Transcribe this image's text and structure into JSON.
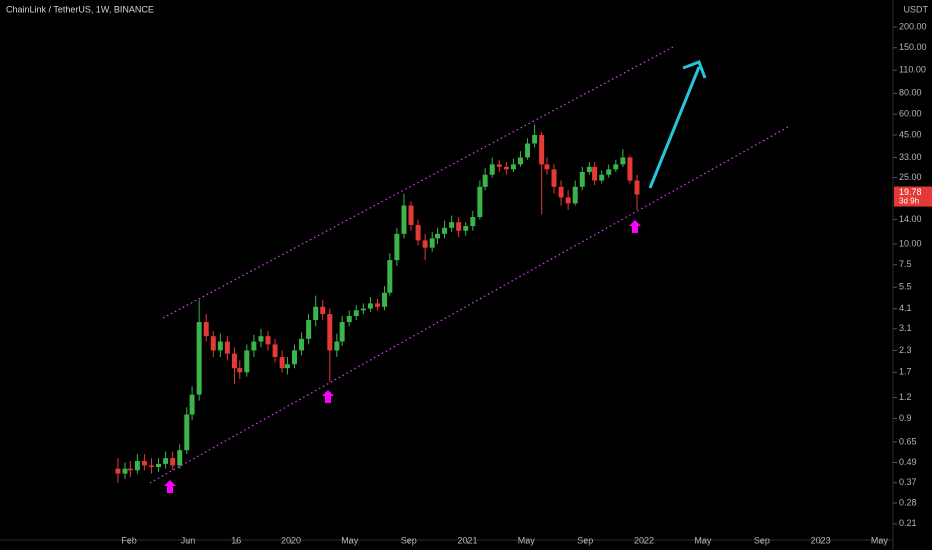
{
  "chart_data": {
    "type": "candlestick",
    "title": "ChainLink / TetherUS, 1W, BINANCE",
    "y_unit": "USDT",
    "last_price": 19.78,
    "countdown": "3d 9h",
    "log_scale": true,
    "up_color": "#3bb54a",
    "down_color": "#e53935",
    "xlim": [
      2018.352,
      2023.41
    ],
    "ylim": [
      0.18,
      290
    ],
    "xticks": [
      {
        "value": 2019.083,
        "label": "Feb"
      },
      {
        "value": 2019.417,
        "label": "Jun"
      },
      {
        "value": 2019.69,
        "label": "16"
      },
      2020,
      {
        "value": 2020.333,
        "label": "May"
      },
      {
        "value": 2020.667,
        "label": "Sep"
      },
      2021,
      {
        "value": 2021.333,
        "label": "May"
      },
      {
        "value": 2021.667,
        "label": "Sep"
      },
      2022,
      {
        "value": 2022.333,
        "label": "May"
      },
      {
        "value": 2022.667,
        "label": "Sep"
      },
      2023,
      {
        "value": 2023.333,
        "label": "May"
      }
    ],
    "yticks": [
      {
        "value": 200,
        "label": "200.00"
      },
      {
        "value": 150,
        "label": "150.00"
      },
      {
        "value": 110,
        "label": "110.00"
      },
      {
        "value": 80,
        "label": "80.00"
      },
      {
        "value": 60,
        "label": "60.00"
      },
      {
        "value": 45,
        "label": "45.00"
      },
      {
        "value": 33,
        "label": "33.00"
      },
      {
        "value": 25,
        "label": "25.00"
      },
      {
        "value": 14,
        "label": "14.00"
      },
      {
        "value": 10,
        "label": "10.00"
      },
      7.5,
      5.5,
      4.1,
      3.1,
      2.3,
      1.7,
      1.2,
      0.9,
      0.65,
      0.49,
      0.37,
      0.28,
      0.21
    ],
    "x": [
      2019.02,
      2019.06,
      2019.09,
      2019.13,
      2019.17,
      2019.21,
      2019.25,
      2019.29,
      2019.33,
      2019.37,
      2019.41,
      2019.44,
      2019.48,
      2019.52,
      2019.56,
      2019.6,
      2019.64,
      2019.68,
      2019.71,
      2019.75,
      2019.79,
      2019.83,
      2019.87,
      2019.91,
      2019.95,
      2019.98,
      2020.02,
      2020.06,
      2020.1,
      2020.14,
      2020.18,
      2020.22,
      2020.26,
      2020.29,
      2020.33,
      2020.37,
      2020.41,
      2020.45,
      2020.49,
      2020.53,
      2020.56,
      2020.6,
      2020.64,
      2020.68,
      2020.72,
      2020.76,
      2020.8,
      2020.83,
      2020.87,
      2020.91,
      2020.95,
      2020.99,
      2021.03,
      2021.07,
      2021.1,
      2021.14,
      2021.18,
      2021.22,
      2021.26,
      2021.3,
      2021.34,
      2021.38,
      2021.42,
      2021.45,
      2021.49,
      2021.53,
      2021.57,
      2021.61,
      2021.65,
      2021.69,
      2021.72,
      2021.76,
      2021.8,
      2021.84,
      2021.88,
      2021.92,
      2021.96
    ],
    "open": [
      0.45,
      0.42,
      0.45,
      0.44,
      0.5,
      0.47,
      0.46,
      0.48,
      0.52,
      0.47,
      0.58,
      0.95,
      1.25,
      3.4,
      2.8,
      2.3,
      2.6,
      2.2,
      1.8,
      1.7,
      2.3,
      2.6,
      2.8,
      2.5,
      2.1,
      1.8,
      1.9,
      2.3,
      2.7,
      3.5,
      4.2,
      3.8,
      2.3,
      2.6,
      3.4,
      3.7,
      4.0,
      4.1,
      4.4,
      4.2,
      5.1,
      8.0,
      11.5,
      17.0,
      13.0,
      10.5,
      9.5,
      10.8,
      11.5,
      12.5,
      13.5,
      12.0,
      12.8,
      14.5,
      22.0,
      26.0,
      30.0,
      29.0,
      28.0,
      30.0,
      33.0,
      40.0,
      45.0,
      30.0,
      28.0,
      22.0,
      19.0,
      17.5,
      22.0,
      27.0,
      29.0,
      24.0,
      26.0,
      28.0,
      30.0,
      33.0,
      24.0
    ],
    "high": [
      0.52,
      0.49,
      0.5,
      0.55,
      0.55,
      0.52,
      0.52,
      0.57,
      0.57,
      0.63,
      1.05,
      1.4,
      4.6,
      3.8,
      3.0,
      2.9,
      2.8,
      2.4,
      2.0,
      2.5,
      2.85,
      3.1,
      3.0,
      2.7,
      2.3,
      2.1,
      2.5,
      2.95,
      3.8,
      4.9,
      4.6,
      4.1,
      2.9,
      3.7,
      4.0,
      4.3,
      4.4,
      4.8,
      4.7,
      5.6,
      8.8,
      12.5,
      20.0,
      18.0,
      14.0,
      11.5,
      11.8,
      12.5,
      13.8,
      14.8,
      14.5,
      13.5,
      15.8,
      24.0,
      28.5,
      33.0,
      32.0,
      31.0,
      32.5,
      36.0,
      43.0,
      52.0,
      47.0,
      33.0,
      30.0,
      24.0,
      21.0,
      24.0,
      29.0,
      31.0,
      31.0,
      27.5,
      30.0,
      32.0,
      37.0,
      34.0,
      26.0
    ],
    "low": [
      0.37,
      0.39,
      0.4,
      0.42,
      0.44,
      0.42,
      0.43,
      0.45,
      0.44,
      0.45,
      0.55,
      0.88,
      1.15,
      2.6,
      2.1,
      2.1,
      2.0,
      1.45,
      1.55,
      1.6,
      2.1,
      2.4,
      2.3,
      1.95,
      1.7,
      1.65,
      1.8,
      2.15,
      2.5,
      3.2,
      3.5,
      1.5,
      2.1,
      2.45,
      3.2,
      3.5,
      3.8,
      3.9,
      4.0,
      4.0,
      4.9,
      7.4,
      10.8,
      12.0,
      9.8,
      8.0,
      9.0,
      10.0,
      10.8,
      11.8,
      11.0,
      11.2,
      12.0,
      14.0,
      21.0,
      25.0,
      27.0,
      26.0,
      27.0,
      29.0,
      32.0,
      38.0,
      15.0,
      26.0,
      20.0,
      17.0,
      16.0,
      17.0,
      21.0,
      26.0,
      22.5,
      23.0,
      25.0,
      27.0,
      29.0,
      23.0,
      16.0
    ],
    "close": [
      0.42,
      0.45,
      0.44,
      0.5,
      0.47,
      0.46,
      0.48,
      0.52,
      0.47,
      0.58,
      0.95,
      1.25,
      3.4,
      2.8,
      2.3,
      2.6,
      2.2,
      1.8,
      1.7,
      2.3,
      2.6,
      2.8,
      2.5,
      2.1,
      1.8,
      1.9,
      2.3,
      2.7,
      3.5,
      4.2,
      3.8,
      2.3,
      2.6,
      3.4,
      3.7,
      4.0,
      4.1,
      4.4,
      4.2,
      5.1,
      8.0,
      11.5,
      17.0,
      13.0,
      10.5,
      9.5,
      10.8,
      11.5,
      12.5,
      13.5,
      12.0,
      12.8,
      14.5,
      22.0,
      26.0,
      30.0,
      29.0,
      28.0,
      30.0,
      33.0,
      40.0,
      45.0,
      30.0,
      28.0,
      22.0,
      19.0,
      17.5,
      22.0,
      27.0,
      29.0,
      24.0,
      26.0,
      28.0,
      30.0,
      33.0,
      24.0,
      19.78
    ]
  }
}
